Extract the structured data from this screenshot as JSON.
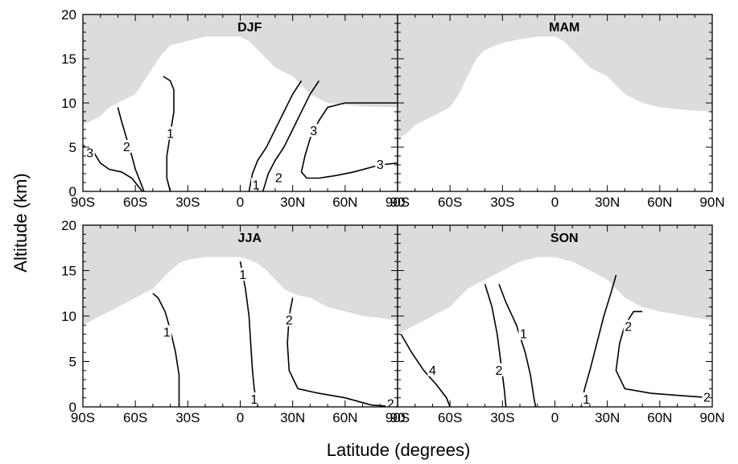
{
  "chart_data": {
    "type": "contour",
    "xlabel": "Latitude (degrees)",
    "ylabel": "Altitude (km)",
    "xlim": [
      -90,
      90
    ],
    "ylim": [
      0,
      20
    ],
    "x_ticks": [
      -90,
      -60,
      -30,
      0,
      30,
      60,
      90
    ],
    "x_tick_labels": [
      "90S",
      "60S",
      "30S",
      "0",
      "30N",
      "60N",
      "90"
    ],
    "x_tick_labels_right": [
      "90S",
      "60S",
      "30S",
      "0",
      "30N",
      "60N",
      "90N"
    ],
    "y_ticks": [
      0,
      5,
      10,
      15,
      20
    ],
    "y_tick_labels": [
      "0",
      "5",
      "10",
      "15",
      "20"
    ],
    "panels": [
      {
        "title": "DJF",
        "tropopause": [
          [
            -90,
            7.5
          ],
          [
            -85,
            8
          ],
          [
            -80,
            8.5
          ],
          [
            -75,
            9.5
          ],
          [
            -70,
            10
          ],
          [
            -65,
            10.5
          ],
          [
            -60,
            11
          ],
          [
            -55,
            12.5
          ],
          [
            -50,
            14
          ],
          [
            -45,
            15.5
          ],
          [
            -40,
            16.5
          ],
          [
            -30,
            17
          ],
          [
            -20,
            17.5
          ],
          [
            -10,
            17.5
          ],
          [
            0,
            17.5
          ],
          [
            5,
            17
          ],
          [
            10,
            16
          ],
          [
            15,
            15
          ],
          [
            20,
            14
          ],
          [
            25,
            13.5
          ],
          [
            30,
            13
          ],
          [
            35,
            12
          ],
          [
            40,
            11
          ],
          [
            50,
            10
          ],
          [
            60,
            9.8
          ],
          [
            70,
            9.6
          ],
          [
            90,
            9.5
          ]
        ],
        "contours": [
          {
            "label": "3",
            "points": [
              [
                -90,
                5.2
              ],
              [
                -84,
                4.5
              ],
              [
                -80,
                3.2
              ],
              [
                -75,
                2.5
              ],
              [
                -68,
                2.2
              ],
              [
                -62,
                1.5
              ],
              [
                -58,
                0.5
              ],
              [
                -56,
                0
              ]
            ]
          },
          {
            "label": "2",
            "points": [
              [
                -70,
                9.5
              ],
              [
                -68,
                8
              ],
              [
                -65,
                6
              ],
              [
                -62,
                4
              ],
              [
                -60,
                2.5
              ],
              [
                -57,
                1
              ],
              [
                -55,
                0
              ]
            ]
          },
          {
            "label": "1",
            "points": [
              [
                -44,
                13
              ],
              [
                -40,
                12.5
              ],
              [
                -38,
                11.5
              ],
              [
                -38,
                9
              ],
              [
                -40,
                6.5
              ],
              [
                -42,
                4
              ],
              [
                -42,
                1.5
              ],
              [
                -40,
                0
              ]
            ]
          },
          {
            "label": "1",
            "points": [
              [
                5,
                0
              ],
              [
                7,
                2
              ],
              [
                10,
                3.5
              ],
              [
                15,
                5
              ],
              [
                20,
                7
              ],
              [
                25,
                9
              ],
              [
                30,
                11
              ],
              [
                35,
                12.5
              ]
            ]
          },
          {
            "label": "2",
            "points": [
              [
                13,
                0
              ],
              [
                16,
                2
              ],
              [
                20,
                3.5
              ],
              [
                25,
                5
              ],
              [
                30,
                7
              ],
              [
                35,
                9
              ],
              [
                40,
                11
              ],
              [
                45,
                12.5
              ]
            ]
          },
          {
            "label": "3",
            "points": [
              [
                90,
                3.2
              ],
              [
                80,
                3
              ],
              [
                65,
                2.2
              ],
              [
                55,
                1.8
              ],
              [
                45,
                1.5
              ],
              [
                38,
                1.5
              ],
              [
                35,
                2.2
              ],
              [
                37,
                4
              ],
              [
                40,
                6
              ],
              [
                45,
                8
              ],
              [
                50,
                9.5
              ],
              [
                60,
                10
              ],
              [
                75,
                10
              ],
              [
                90,
                10
              ]
            ]
          }
        ],
        "labels": [
          {
            "text": "3",
            "x": -86,
            "y": 4.3
          },
          {
            "text": "2",
            "x": -65,
            "y": 5
          },
          {
            "text": "1",
            "x": -40,
            "y": 6.5
          },
          {
            "text": "1",
            "x": 9,
            "y": 0.7
          },
          {
            "text": "2",
            "x": 22,
            "y": 1.5
          },
          {
            "text": "3",
            "x": 42,
            "y": 6.8
          },
          {
            "text": "3",
            "x": 80,
            "y": 3
          }
        ]
      },
      {
        "title": "MAM",
        "tropopause": [
          [
            -90,
            6
          ],
          [
            -85,
            6.5
          ],
          [
            -80,
            7.5
          ],
          [
            -75,
            8
          ],
          [
            -70,
            8.5
          ],
          [
            -65,
            9
          ],
          [
            -60,
            9.5
          ],
          [
            -55,
            11
          ],
          [
            -50,
            13
          ],
          [
            -45,
            15
          ],
          [
            -40,
            16
          ],
          [
            -30,
            16.8
          ],
          [
            -20,
            17.2
          ],
          [
            -10,
            17.5
          ],
          [
            0,
            17.5
          ],
          [
            5,
            17
          ],
          [
            10,
            16
          ],
          [
            15,
            15
          ],
          [
            20,
            14
          ],
          [
            25,
            13.5
          ],
          [
            30,
            13
          ],
          [
            35,
            12
          ],
          [
            40,
            11
          ],
          [
            50,
            10
          ],
          [
            60,
            9.5
          ],
          [
            75,
            9.2
          ],
          [
            90,
            9
          ]
        ]
      },
      {
        "title": "JJA",
        "tropopause": [
          [
            -90,
            9
          ],
          [
            -85,
            9.5
          ],
          [
            -80,
            10
          ],
          [
            -75,
            10.5
          ],
          [
            -70,
            11
          ],
          [
            -65,
            11.5
          ],
          [
            -60,
            12
          ],
          [
            -55,
            12.5
          ],
          [
            -50,
            13
          ],
          [
            -45,
            14
          ],
          [
            -40,
            15
          ],
          [
            -35,
            15.8
          ],
          [
            -30,
            16.2
          ],
          [
            -20,
            16.5
          ],
          [
            -10,
            16.5
          ],
          [
            0,
            16.5
          ],
          [
            5,
            16.2
          ],
          [
            10,
            15.8
          ],
          [
            15,
            15
          ],
          [
            20,
            14
          ],
          [
            25,
            13
          ],
          [
            30,
            12.5
          ],
          [
            35,
            12.2
          ],
          [
            40,
            12
          ],
          [
            50,
            11
          ],
          [
            60,
            10.5
          ],
          [
            70,
            10
          ],
          [
            80,
            9.8
          ],
          [
            90,
            9.5
          ]
        ],
        "contours": [
          {
            "label": "1",
            "points": [
              [
                -50,
                12.5
              ],
              [
                -47,
                12
              ],
              [
                -43,
                10.5
              ],
              [
                -40,
                8.5
              ],
              [
                -37,
                6
              ],
              [
                -35,
                3.5
              ],
              [
                -35,
                0
              ]
            ]
          },
          {
            "label": "1",
            "points": [
              [
                0,
                16
              ],
              [
                1,
                15
              ],
              [
                3,
                13
              ],
              [
                5,
                10
              ],
              [
                6,
                7
              ],
              [
                7,
                4
              ],
              [
                8,
                2
              ],
              [
                10,
                0
              ]
            ]
          },
          {
            "label": "2",
            "points": [
              [
                30,
                12
              ],
              [
                28,
                10
              ],
              [
                27,
                7
              ],
              [
                28,
                4
              ],
              [
                33,
                2
              ],
              [
                45,
                1.5
              ],
              [
                60,
                1
              ],
              [
                75,
                0.2
              ],
              [
                90,
                0
              ]
            ]
          }
        ],
        "labels": [
          {
            "text": "1",
            "x": -42,
            "y": 8.2
          },
          {
            "text": "1",
            "x": 1.5,
            "y": 14.5
          },
          {
            "text": "1",
            "x": 8,
            "y": 0.8
          },
          {
            "text": "2",
            "x": 28,
            "y": 9.5
          },
          {
            "text": "2",
            "x": 86,
            "y": 0.3
          }
        ]
      },
      {
        "title": "SON",
        "tropopause": [
          [
            -90,
            8
          ],
          [
            -85,
            8.5
          ],
          [
            -80,
            9
          ],
          [
            -75,
            9.5
          ],
          [
            -70,
            10
          ],
          [
            -65,
            10.5
          ],
          [
            -60,
            11
          ],
          [
            -55,
            12
          ],
          [
            -50,
            13
          ],
          [
            -45,
            13.5
          ],
          [
            -40,
            14
          ],
          [
            -30,
            15
          ],
          [
            -20,
            16
          ],
          [
            -10,
            16.5
          ],
          [
            0,
            16.5
          ],
          [
            5,
            16.2
          ],
          [
            10,
            16
          ],
          [
            15,
            15.5
          ],
          [
            20,
            15
          ],
          [
            25,
            14.5
          ],
          [
            30,
            14
          ],
          [
            35,
            13
          ],
          [
            40,
            12
          ],
          [
            50,
            11
          ],
          [
            60,
            10.5
          ],
          [
            75,
            10
          ],
          [
            90,
            9.5
          ]
        ],
        "contours": [
          {
            "label": "4",
            "points": [
              [
                -88,
                8
              ],
              [
                -82,
                6
              ],
              [
                -75,
                4
              ],
              [
                -68,
                2.5
              ],
              [
                -62,
                1
              ],
              [
                -60,
                0
              ]
            ]
          },
          {
            "label": "2",
            "points": [
              [
                -40,
                13.5
              ],
              [
                -36,
                11
              ],
              [
                -33,
                8
              ],
              [
                -31,
                5
              ],
              [
                -29,
                2
              ],
              [
                -28,
                0
              ]
            ]
          },
          {
            "label": "1",
            "points": [
              [
                -32,
                13.5
              ],
              [
                -28,
                11.5
              ],
              [
                -22,
                9
              ],
              [
                -17,
                6
              ],
              [
                -14,
                3.5
              ],
              [
                -12,
                1
              ],
              [
                -11,
                0
              ]
            ]
          },
          {
            "label": "1",
            "points": [
              [
                15,
                0
              ],
              [
                17,
                2
              ],
              [
                20,
                4
              ],
              [
                24,
                7
              ],
              [
                28,
                10
              ],
              [
                32,
                12.5
              ],
              [
                35,
                14.5
              ]
            ]
          },
          {
            "label": "2",
            "points": [
              [
                50,
                10.5
              ],
              [
                45,
                10.5
              ],
              [
                40,
                9
              ],
              [
                37,
                7
              ],
              [
                35,
                4
              ],
              [
                40,
                2
              ],
              [
                55,
                1.5
              ],
              [
                75,
                1.2
              ],
              [
                90,
                1
              ]
            ]
          }
        ],
        "labels": [
          {
            "text": "4",
            "x": -70,
            "y": 4
          },
          {
            "text": "2",
            "x": -32,
            "y": 4
          },
          {
            "text": "1",
            "x": -18,
            "y": 8
          },
          {
            "text": "1",
            "x": 18,
            "y": 0.8
          },
          {
            "text": "2",
            "x": 42,
            "y": 8.8
          },
          {
            "text": "2",
            "x": 87,
            "y": 1
          }
        ]
      }
    ]
  }
}
